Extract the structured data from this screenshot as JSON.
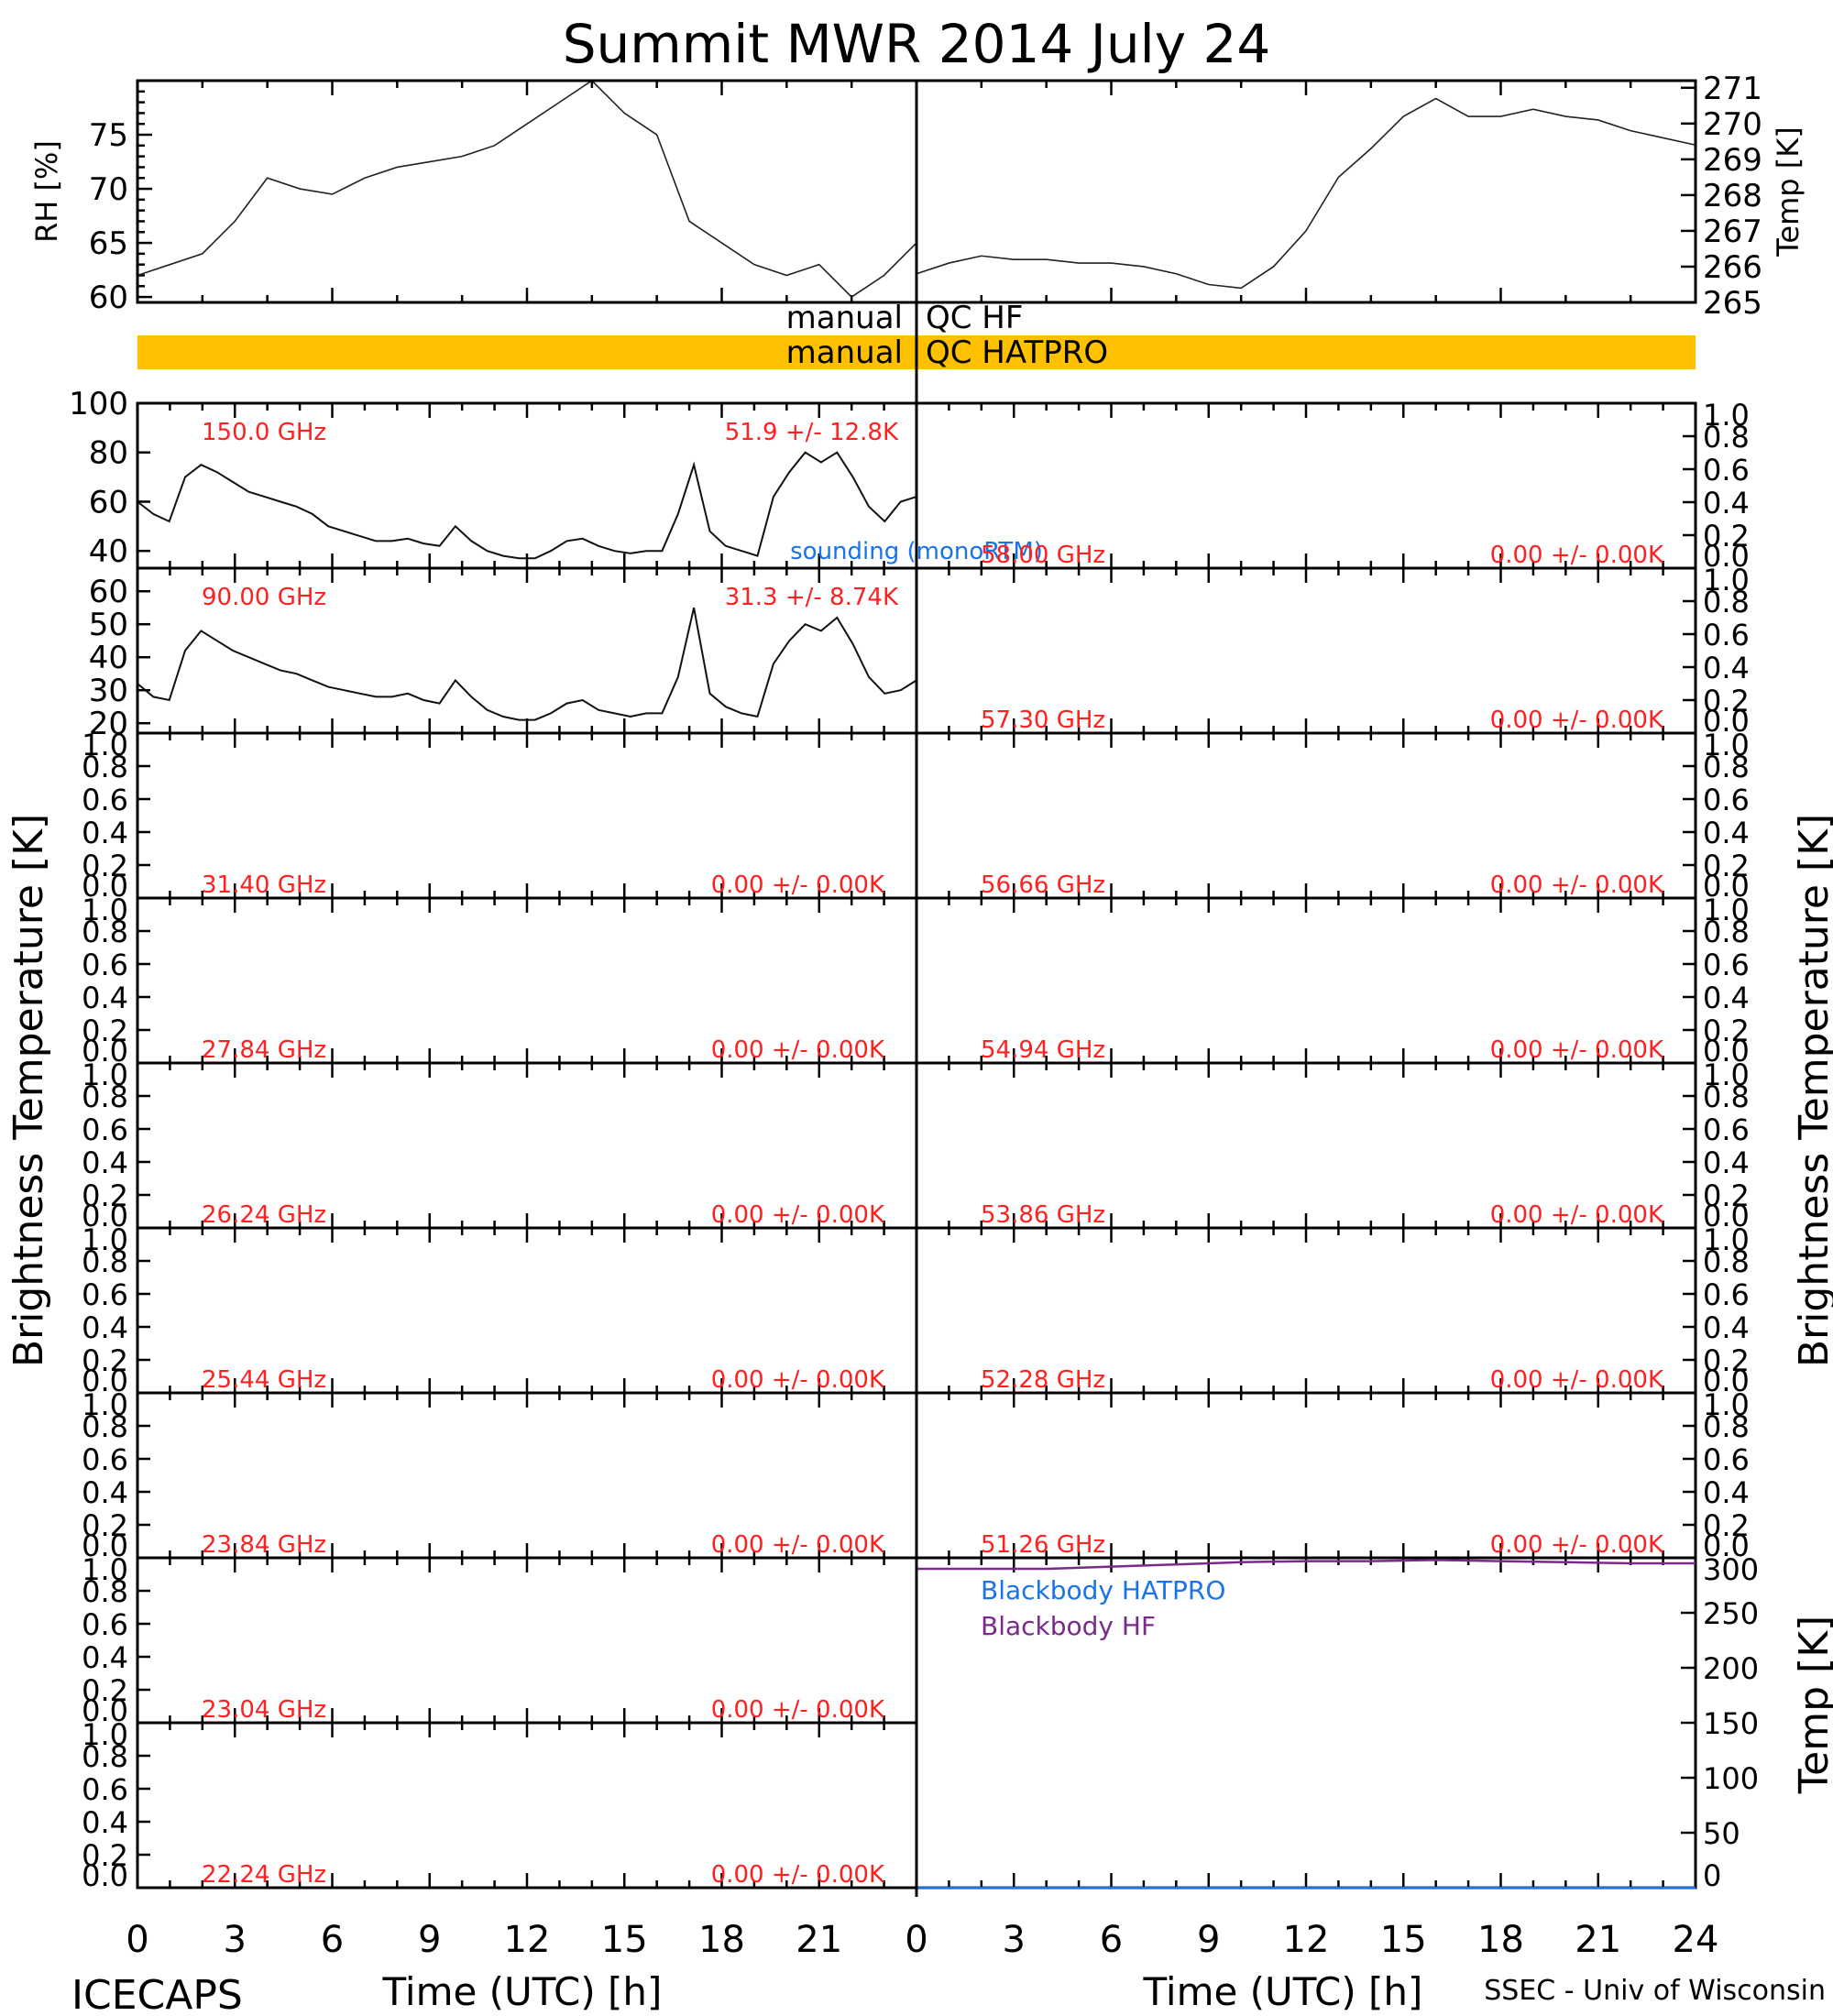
{
  "title": "Summit MWR 2014 July 24",
  "footer": {
    "left": "ICECAPS",
    "right": "SSEC - Univ of Wisconsin"
  },
  "colors": {
    "red": "#ff2020",
    "blue": "#1a73e8",
    "purple": "#7a2a8a",
    "qc_band": "#ffc000"
  },
  "qc": {
    "hf_label": "manual",
    "hf_right": "QC HF",
    "hatpro_label": "manual",
    "hatpro_right": "QC HATPRO"
  },
  "time_axis": {
    "label": "Time (UTC) [h]",
    "ticks": [
      "0",
      "3",
      "6",
      "9",
      "12",
      "15",
      "18",
      "21",
      "24"
    ]
  },
  "side_labels": {
    "left": "Brightness Temperature [K]",
    "right": "Brightness Temperature [K]",
    "bb_right": "Temp [K]"
  },
  "met": {
    "rh_label": "RH [%]",
    "temp_label": "Temp [K]",
    "rh_ticks": [
      "60",
      "65",
      "70",
      "75"
    ],
    "temp_ticks": [
      "265",
      "266",
      "267",
      "268",
      "269",
      "270",
      "271"
    ]
  },
  "zero_ticks": [
    "0.0",
    "0.2",
    "0.4",
    "0.6",
    "0.8",
    "1.0"
  ],
  "panels_left": [
    {
      "freq": "150.0 GHz",
      "stats": "51.9 +/- 12.8K",
      "ticks": [
        "40",
        "60",
        "80",
        "100"
      ],
      "annotation": "sounding (monoRTM)"
    },
    {
      "freq": "90.00 GHz",
      "stats": "31.3 +/- 8.74K",
      "ticks": [
        "20",
        "30",
        "40",
        "50",
        "60"
      ]
    },
    {
      "freq": "31.40 GHz",
      "stats": "0.00 +/- 0.00K"
    },
    {
      "freq": "27.84 GHz",
      "stats": "0.00 +/- 0.00K"
    },
    {
      "freq": "26.24 GHz",
      "stats": "0.00 +/- 0.00K"
    },
    {
      "freq": "25.44 GHz",
      "stats": "0.00 +/- 0.00K"
    },
    {
      "freq": "23.84 GHz",
      "stats": "0.00 +/- 0.00K"
    },
    {
      "freq": "23.04 GHz",
      "stats": "0.00 +/- 0.00K"
    },
    {
      "freq": "22.24 GHz",
      "stats": "0.00 +/- 0.00K"
    }
  ],
  "panels_right": [
    {
      "freq": "58.00 GHz",
      "stats": "0.00 +/- 0.00K"
    },
    {
      "freq": "57.30 GHz",
      "stats": "0.00 +/- 0.00K"
    },
    {
      "freq": "56.66 GHz",
      "stats": "0.00 +/- 0.00K"
    },
    {
      "freq": "54.94 GHz",
      "stats": "0.00 +/- 0.00K"
    },
    {
      "freq": "53.86 GHz",
      "stats": "0.00 +/- 0.00K"
    },
    {
      "freq": "52.28 GHz",
      "stats": "0.00 +/- 0.00K"
    },
    {
      "freq": "51.26 GHz",
      "stats": "0.00 +/- 0.00K"
    }
  ],
  "blackbody": {
    "ticks": [
      "0",
      "50",
      "100",
      "150",
      "200",
      "250",
      "300"
    ],
    "legend_hatpro": "Blackbody HATPRO",
    "legend_hf": "Blackbody HF"
  },
  "chart_data": [
    {
      "type": "line",
      "title": "Summit MWR 2014 July 24",
      "xlabel": "",
      "ylabel": "RH [%]",
      "xlim": [
        0,
        12
      ],
      "ylim": [
        59.5,
        80
      ],
      "x": [
        0,
        0.5,
        1,
        1.5,
        2,
        2.5,
        3,
        3.5,
        4,
        4.5,
        5,
        5.5,
        6,
        6.5,
        7,
        7.5,
        8,
        8.5,
        9,
        9.5,
        10,
        10.5,
        11,
        11.5,
        12
      ],
      "values": [
        62,
        63,
        64,
        67,
        71,
        70,
        69.5,
        71,
        72,
        72.5,
        73,
        74,
        76,
        78,
        80,
        77,
        75,
        67,
        65,
        63,
        62,
        63,
        60,
        62,
        65
      ]
    },
    {
      "type": "line",
      "xlabel": "",
      "ylabel": "Temp [K]",
      "xlim": [
        12,
        24
      ],
      "ylim": [
        265,
        271.2
      ],
      "x": [
        12,
        12.5,
        13,
        13.5,
        14,
        14.5,
        15,
        15.5,
        16,
        16.5,
        17,
        17.5,
        18,
        18.5,
        19,
        19.5,
        20,
        20.5,
        21,
        21.5,
        22,
        22.5,
        23,
        23.5,
        24
      ],
      "values": [
        265.8,
        266.1,
        266.3,
        266.2,
        266.2,
        266.1,
        266.1,
        266,
        265.8,
        265.5,
        265.4,
        266,
        267,
        268.5,
        269.3,
        270.2,
        270.7,
        270.2,
        270.2,
        270.4,
        270.2,
        270.1,
        269.8,
        269.6,
        269.4
      ]
    },
    {
      "type": "line",
      "xlabel": "",
      "ylabel": "",
      "xlim": [
        0,
        12
      ],
      "ylim": [
        33,
        100
      ],
      "series": [
        {
          "values": [
            60,
            55,
            52,
            70,
            75,
            72,
            68,
            64,
            62,
            60,
            58,
            55,
            50,
            48,
            46,
            44,
            44,
            45,
            43,
            42,
            50,
            44,
            40,
            38,
            37,
            37,
            40,
            44,
            45,
            42,
            40,
            39,
            40,
            40,
            55,
            75,
            48,
            42,
            40,
            38,
            62,
            72,
            80,
            76,
            80,
            70,
            58,
            52,
            60,
            62
          ]
        }
      ]
    },
    {
      "type": "line",
      "xlabel": "",
      "ylabel": "",
      "xlim": [
        0,
        12
      ],
      "ylim": [
        17,
        67
      ],
      "series": [
        {
          "values": [
            32,
            28,
            27,
            42,
            48,
            45,
            42,
            40,
            38,
            36,
            35,
            33,
            31,
            30,
            29,
            28,
            28,
            29,
            27,
            26,
            33,
            28,
            24,
            22,
            21,
            21,
            23,
            26,
            27,
            24,
            23,
            22,
            23,
            23,
            34,
            55,
            29,
            25,
            23,
            22,
            38,
            45,
            50,
            48,
            52,
            44,
            34,
            29,
            30,
            33
          ]
        }
      ]
    },
    {
      "type": "line",
      "xlabel": "",
      "ylabel": "",
      "xlim": [
        12,
        24
      ],
      "ylim": [
        0,
        300
      ],
      "series": [
        {
          "name": "Blackbody HATPRO",
          "values": [
            0,
            0,
            0,
            0,
            0,
            0,
            0,
            0,
            0,
            0,
            0,
            0,
            0
          ]
        },
        {
          "name": "Blackbody HF",
          "values": [
            290,
            290,
            290,
            292,
            294,
            296,
            297,
            297,
            298,
            297,
            296,
            295,
            295
          ]
        }
      ]
    }
  ]
}
